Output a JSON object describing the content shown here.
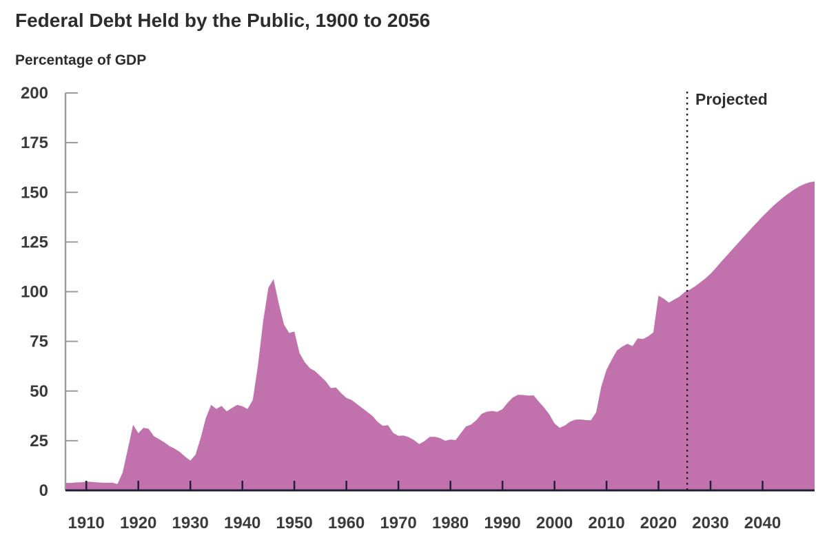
{
  "chart_data": {
    "type": "area",
    "title": "Federal Debt Held by the Public, 1900 to 2056",
    "ylabel": "Percentage of GDP",
    "xlabel": "",
    "ylim": [
      0,
      200
    ],
    "xlim": [
      1906,
      2050
    ],
    "y_ticks": [
      0,
      25,
      50,
      75,
      100,
      125,
      150,
      175,
      200
    ],
    "x_ticks": [
      1910,
      1920,
      1930,
      1940,
      1950,
      1960,
      1970,
      1980,
      1990,
      2000,
      2010,
      2020,
      2030,
      2040
    ],
    "grid": false,
    "legend_position": "none",
    "annotation": {
      "label": "Projected",
      "divider_year": 2025.5
    },
    "colors": {
      "area_fill": "#c171ac",
      "x_axis": "#201f35",
      "y_axis": "#9a9a9a",
      "tick_text": "#3b3b3b",
      "divider": "#1b1b1b"
    },
    "series": [
      {
        "name": "Federal debt held by the public",
        "unit": "percentage of GDP",
        "points": [
          [
            1906,
            3.8
          ],
          [
            1907,
            3.7
          ],
          [
            1908,
            4.0
          ],
          [
            1909,
            4.1
          ],
          [
            1910,
            4.4
          ],
          [
            1911,
            4.3
          ],
          [
            1912,
            4.1
          ],
          [
            1913,
            3.9
          ],
          [
            1914,
            3.8
          ],
          [
            1915,
            3.9
          ],
          [
            1916,
            3.2
          ],
          [
            1917,
            9.0
          ],
          [
            1918,
            21.0
          ],
          [
            1919,
            33.0
          ],
          [
            1920,
            28.8
          ],
          [
            1921,
            31.5
          ],
          [
            1922,
            31.0
          ],
          [
            1923,
            27.3
          ],
          [
            1924,
            25.8
          ],
          [
            1925,
            24.2
          ],
          [
            1926,
            22.3
          ],
          [
            1927,
            21.0
          ],
          [
            1928,
            19.3
          ],
          [
            1929,
            17.0
          ],
          [
            1930,
            15.0
          ],
          [
            1931,
            18.0
          ],
          [
            1932,
            26.5
          ],
          [
            1933,
            36.5
          ],
          [
            1934,
            43.0
          ],
          [
            1935,
            41.0
          ],
          [
            1936,
            42.5
          ],
          [
            1937,
            39.8
          ],
          [
            1938,
            41.5
          ],
          [
            1939,
            43.0
          ],
          [
            1940,
            42.4
          ],
          [
            1941,
            41.0
          ],
          [
            1942,
            45.5
          ],
          [
            1943,
            63.0
          ],
          [
            1944,
            85.0
          ],
          [
            1945,
            102.0
          ],
          [
            1946,
            106.3
          ],
          [
            1947,
            94.0
          ],
          [
            1948,
            83.5
          ],
          [
            1949,
            79.2
          ],
          [
            1950,
            80.0
          ],
          [
            1951,
            69.0
          ],
          [
            1952,
            64.5
          ],
          [
            1953,
            61.5
          ],
          [
            1954,
            60.0
          ],
          [
            1955,
            57.5
          ],
          [
            1956,
            55.0
          ],
          [
            1957,
            51.5
          ],
          [
            1958,
            51.8
          ],
          [
            1959,
            48.9
          ],
          [
            1960,
            46.5
          ],
          [
            1961,
            45.5
          ],
          [
            1962,
            43.5
          ],
          [
            1963,
            41.5
          ],
          [
            1964,
            39.5
          ],
          [
            1965,
            37.5
          ],
          [
            1966,
            34.5
          ],
          [
            1967,
            32.5
          ],
          [
            1968,
            32.8
          ],
          [
            1969,
            28.9
          ],
          [
            1970,
            27.5
          ],
          [
            1971,
            27.6
          ],
          [
            1972,
            26.8
          ],
          [
            1973,
            25.3
          ],
          [
            1974,
            23.3
          ],
          [
            1975,
            24.8
          ],
          [
            1976,
            26.9
          ],
          [
            1977,
            27.0
          ],
          [
            1978,
            26.3
          ],
          [
            1979,
            25.0
          ],
          [
            1980,
            25.6
          ],
          [
            1981,
            25.3
          ],
          [
            1982,
            28.8
          ],
          [
            1983,
            32.2
          ],
          [
            1984,
            33.2
          ],
          [
            1985,
            35.4
          ],
          [
            1986,
            38.5
          ],
          [
            1987,
            39.6
          ],
          [
            1988,
            40.0
          ],
          [
            1989,
            39.5
          ],
          [
            1990,
            40.9
          ],
          [
            1991,
            44.1
          ],
          [
            1992,
            46.8
          ],
          [
            1993,
            48.1
          ],
          [
            1994,
            48.0
          ],
          [
            1995,
            47.7
          ],
          [
            1996,
            47.8
          ],
          [
            1997,
            44.6
          ],
          [
            1998,
            41.7
          ],
          [
            1999,
            38.3
          ],
          [
            2000,
            33.7
          ],
          [
            2001,
            31.5
          ],
          [
            2002,
            32.7
          ],
          [
            2003,
            34.6
          ],
          [
            2004,
            35.6
          ],
          [
            2005,
            35.7
          ],
          [
            2006,
            35.4
          ],
          [
            2007,
            35.3
          ],
          [
            2008,
            39.3
          ],
          [
            2009,
            52.3
          ],
          [
            2010,
            60.7
          ],
          [
            2011,
            65.8
          ],
          [
            2012,
            70.4
          ],
          [
            2013,
            72.3
          ],
          [
            2014,
            73.8
          ],
          [
            2015,
            72.6
          ],
          [
            2016,
            76.5
          ],
          [
            2017,
            76.2
          ],
          [
            2018,
            77.5
          ],
          [
            2019,
            79.5
          ],
          [
            2020,
            98.0
          ],
          [
            2021,
            96.5
          ],
          [
            2022,
            94.5
          ],
          [
            2023,
            96.0
          ],
          [
            2024,
            97.5
          ],
          [
            2025,
            99.8
          ],
          [
            2026,
            101.0
          ],
          [
            2027,
            102.7
          ],
          [
            2028,
            104.6
          ],
          [
            2029,
            106.7
          ],
          [
            2030,
            109.0
          ],
          [
            2031,
            111.9
          ],
          [
            2032,
            114.9
          ],
          [
            2033,
            117.8
          ],
          [
            2034,
            120.7
          ],
          [
            2035,
            123.6
          ],
          [
            2036,
            126.5
          ],
          [
            2037,
            129.4
          ],
          [
            2038,
            132.3
          ],
          [
            2039,
            135.1
          ],
          [
            2040,
            137.9
          ],
          [
            2041,
            140.5
          ],
          [
            2042,
            143.0
          ],
          [
            2043,
            145.3
          ],
          [
            2044,
            147.5
          ],
          [
            2045,
            149.5
          ],
          [
            2046,
            151.3
          ],
          [
            2047,
            152.9
          ],
          [
            2048,
            154.1
          ],
          [
            2049,
            155.0
          ],
          [
            2050,
            155.5
          ]
        ]
      }
    ]
  }
}
